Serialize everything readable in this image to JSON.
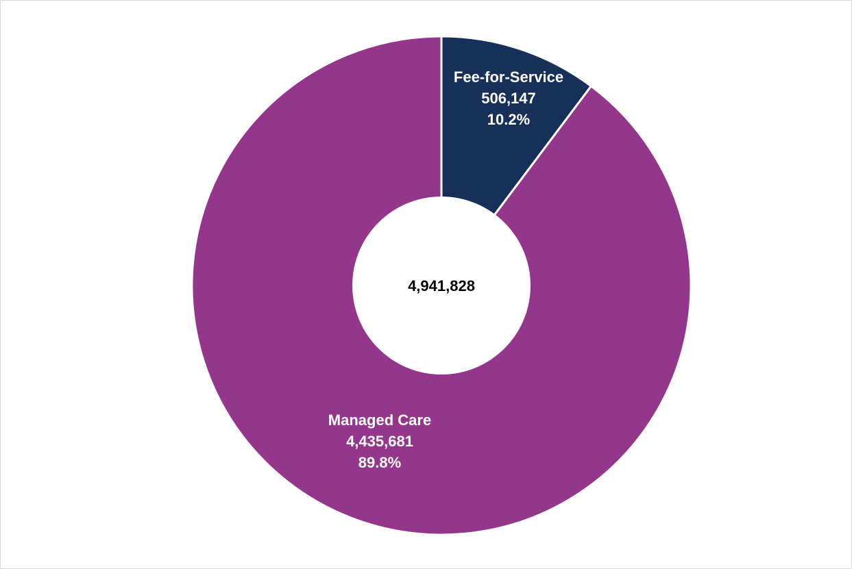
{
  "chart_data": {
    "type": "pie",
    "variant": "donut",
    "title": "",
    "center_label": "4,941,828",
    "slices": [
      {
        "name": "Fee-for-Service",
        "value": 506147,
        "value_label": "506,147",
        "percent_label": "10.2%",
        "color": "#17305a"
      },
      {
        "name": "Managed Care",
        "value": 4435681,
        "value_label": "4,435,681",
        "percent_label": "89.8%",
        "color": "#94368b"
      }
    ],
    "start_angle_deg": 0,
    "direction": "clockwise",
    "legend": "none",
    "separator_color": "#ffffff"
  }
}
